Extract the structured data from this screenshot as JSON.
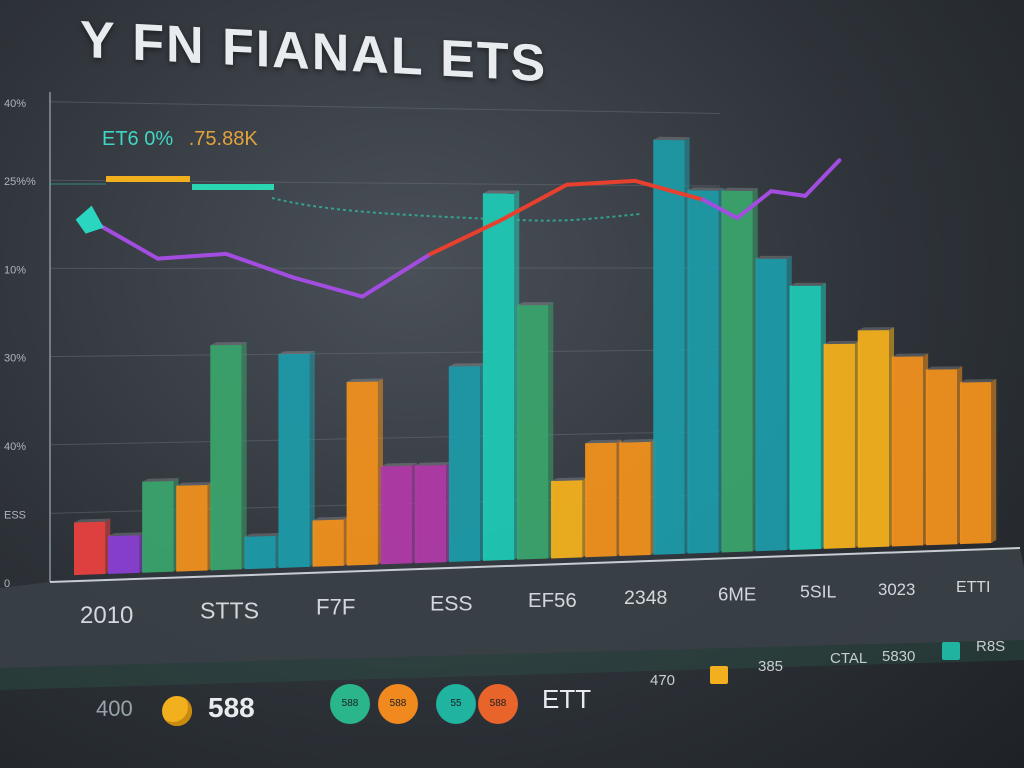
{
  "header": {
    "title": "Y FN FIANAL ETS",
    "readout_a": "ET6 0%",
    "readout_b": ".75.88K"
  },
  "colors": {
    "green": "#3aa36b",
    "teal": "#1e9aa8",
    "aqua": "#1fc8b4",
    "orange": "#f0901e",
    "amber": "#f2b01e",
    "red": "#e8403f",
    "purple": "#8a3fd1",
    "magenta": "#b03aa8",
    "line_purple": "#a34de0",
    "line_red": "#e8402f"
  },
  "chart_data": {
    "type": "bar",
    "title": "Y FN FIANAL ETS",
    "y_ticks": [
      "0",
      "ESS",
      "40%",
      "30%",
      "10%",
      "25%%",
      "40%"
    ],
    "x_labels": [
      "2010",
      "STTS",
      "F7F",
      "ESS",
      "EF56",
      "2348",
      "6ME",
      "5SIL",
      "3023",
      "ETTI"
    ],
    "bars": [
      {
        "value": 12,
        "color": "red"
      },
      {
        "value": 9,
        "color": "purple"
      },
      {
        "value": 20,
        "color": "green"
      },
      {
        "value": 19,
        "color": "orange"
      },
      {
        "value": 48,
        "color": "green"
      },
      {
        "value": 8,
        "color": "teal"
      },
      {
        "value": 46,
        "color": "teal"
      },
      {
        "value": 11,
        "color": "orange"
      },
      {
        "value": 40,
        "color": "orange"
      },
      {
        "value": 22,
        "color": "magenta"
      },
      {
        "value": 22,
        "color": "magenta"
      },
      {
        "value": 43,
        "color": "teal"
      },
      {
        "value": 80,
        "color": "aqua"
      },
      {
        "value": 56,
        "color": "green"
      },
      {
        "value": 18,
        "color": "amber"
      },
      {
        "value": 26,
        "color": "orange"
      },
      {
        "value": 26,
        "color": "orange"
      },
      {
        "value": 92,
        "color": "teal"
      },
      {
        "value": 81,
        "color": "teal"
      },
      {
        "value": 81,
        "color": "green"
      },
      {
        "value": 66,
        "color": "teal"
      },
      {
        "value": 60,
        "color": "aqua"
      },
      {
        "value": 47,
        "color": "amber"
      },
      {
        "value": 50,
        "color": "amber"
      },
      {
        "value": 44,
        "color": "orange"
      },
      {
        "value": 41,
        "color": "orange"
      },
      {
        "value": 38,
        "color": "orange"
      }
    ],
    "line": [
      {
        "x": 0,
        "y": 74
      },
      {
        "x": 2,
        "y": 66
      },
      {
        "x": 4,
        "y": 67
      },
      {
        "x": 6,
        "y": 62
      },
      {
        "x": 8,
        "y": 58
      },
      {
        "x": 10,
        "y": 67
      },
      {
        "x": 12,
        "y": 74
      },
      {
        "x": 14,
        "y": 82
      },
      {
        "x": 16,
        "y": 83
      },
      {
        "x": 18,
        "y": 79
      },
      {
        "x": 19,
        "y": 75
      },
      {
        "x": 20,
        "y": 81
      },
      {
        "x": 21,
        "y": 80
      },
      {
        "x": 22,
        "y": 88
      }
    ],
    "ylim": [
      0,
      100
    ],
    "grid": true
  },
  "legend": {
    "left_value": "400",
    "big_value": "588",
    "circle_labels": [
      "588",
      "588",
      "55",
      "588"
    ],
    "circle_colors": [
      "#2ab58a",
      "#f08a1e",
      "#1fb3a0",
      "#e8642a"
    ],
    "term": "ETT",
    "items": [
      {
        "text": "470",
        "color": ""
      },
      {
        "text": "385",
        "color": "#f2b01e"
      },
      {
        "text": "CTAL",
        "color": ""
      },
      {
        "text": "5830",
        "color": ""
      },
      {
        "text": "R8S",
        "color": "#1fb3a0"
      }
    ]
  }
}
